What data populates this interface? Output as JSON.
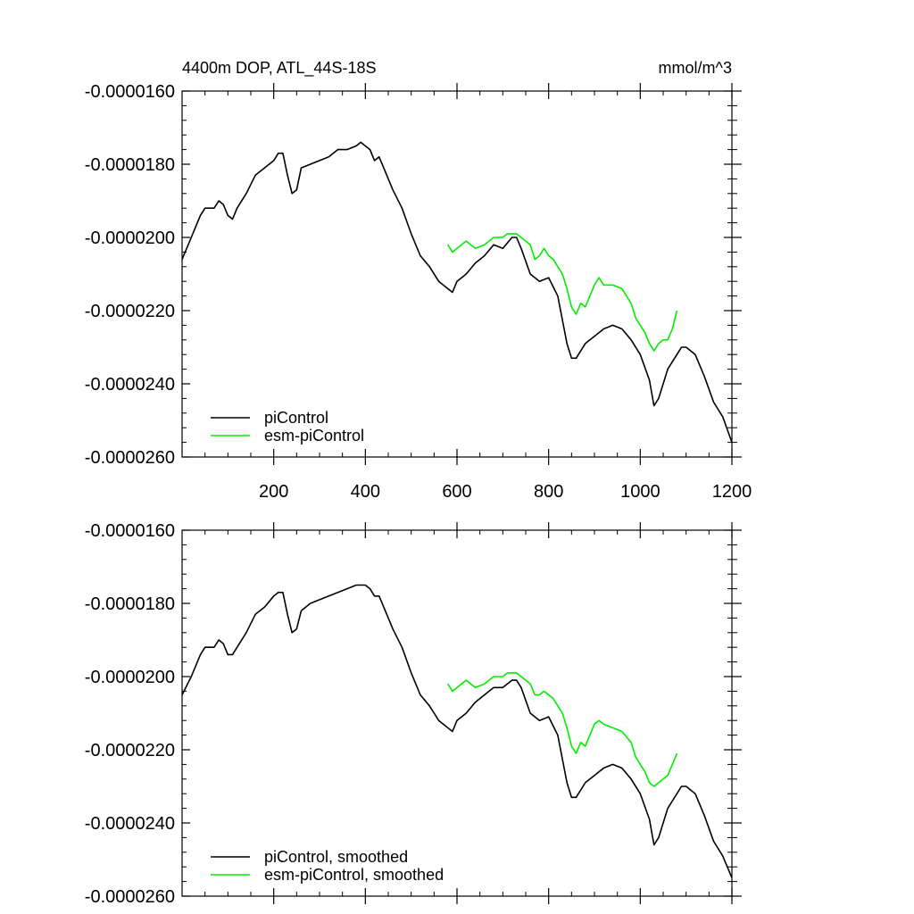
{
  "colors": {
    "background": "#ffffff",
    "axis": "#000000",
    "piControl": "#000000",
    "esm_piControl": "#00ee00"
  },
  "chart_data": [
    {
      "type": "line",
      "title": "4400m DOP, ATL_44S-18S",
      "units": "mmol/m^3",
      "xlabel": "",
      "ylabel": "",
      "xlim": [
        0,
        1200
      ],
      "ylim": [
        -2.6e-05,
        -1.6e-05
      ],
      "xticks": [
        200,
        400,
        600,
        800,
        1000,
        1200
      ],
      "xtick_labels": [
        "200",
        "400",
        "600",
        "800",
        "1000",
        "1200"
      ],
      "yticks": [
        -1.6e-05,
        -1.8e-05,
        -2e-05,
        -2.2e-05,
        -2.4e-05,
        -2.6e-05
      ],
      "ytick_labels": [
        "-0.0000160",
        "-0.0000180",
        "-0.0000200",
        "-0.0000220",
        "-0.0000240",
        "-0.0000260"
      ],
      "legend_position": "bottom-left",
      "series": [
        {
          "name": "piControl",
          "color": "#000000",
          "x": [
            0,
            20,
            40,
            50,
            60,
            70,
            80,
            90,
            100,
            110,
            120,
            140,
            160,
            180,
            200,
            210,
            220,
            230,
            240,
            250,
            260,
            280,
            300,
            320,
            340,
            360,
            380,
            390,
            400,
            410,
            420,
            430,
            440,
            460,
            480,
            500,
            520,
            540,
            560,
            580,
            590,
            600,
            620,
            640,
            660,
            680,
            700,
            720,
            730,
            740,
            760,
            780,
            800,
            820,
            840,
            850,
            860,
            880,
            900,
            920,
            940,
            960,
            980,
            1000,
            1020,
            1030,
            1040,
            1060,
            1080,
            1090,
            1100,
            1120,
            1140,
            1160,
            1180,
            1200
          ],
          "y": [
            -2.06e-05,
            -2e-05,
            -1.94e-05,
            -1.92e-05,
            -1.92e-05,
            -1.92e-05,
            -1.9e-05,
            -1.91e-05,
            -1.94e-05,
            -1.95e-05,
            -1.92e-05,
            -1.88e-05,
            -1.83e-05,
            -1.81e-05,
            -1.79e-05,
            -1.77e-05,
            -1.77e-05,
            -1.83e-05,
            -1.88e-05,
            -1.87e-05,
            -1.81e-05,
            -1.8e-05,
            -1.79e-05,
            -1.78e-05,
            -1.76e-05,
            -1.76e-05,
            -1.75e-05,
            -1.74e-05,
            -1.75e-05,
            -1.76e-05,
            -1.79e-05,
            -1.78e-05,
            -1.81e-05,
            -1.87e-05,
            -1.92e-05,
            -1.99e-05,
            -2.05e-05,
            -2.08e-05,
            -2.12e-05,
            -2.14e-05,
            -2.15e-05,
            -2.12e-05,
            -2.1e-05,
            -2.07e-05,
            -2.05e-05,
            -2.02e-05,
            -2.03e-05,
            -2e-05,
            -2e-05,
            -2.03e-05,
            -2.1e-05,
            -2.12e-05,
            -2.11e-05,
            -2.16e-05,
            -2.29e-05,
            -2.33e-05,
            -2.33e-05,
            -2.29e-05,
            -2.27e-05,
            -2.25e-05,
            -2.24e-05,
            -2.25e-05,
            -2.28e-05,
            -2.32e-05,
            -2.39e-05,
            -2.46e-05,
            -2.44e-05,
            -2.36e-05,
            -2.32e-05,
            -2.3e-05,
            -2.3e-05,
            -2.32e-05,
            -2.38e-05,
            -2.45e-05,
            -2.49e-05,
            -2.56e-05
          ]
        },
        {
          "name": "esm-piControl",
          "color": "#00ee00",
          "x": [
            580,
            590,
            600,
            620,
            640,
            660,
            680,
            700,
            710,
            720,
            730,
            740,
            760,
            770,
            780,
            790,
            800,
            810,
            820,
            830,
            840,
            850,
            860,
            870,
            880,
            890,
            900,
            910,
            920,
            940,
            960,
            980,
            990,
            1000,
            1010,
            1020,
            1030,
            1040,
            1050,
            1060,
            1070,
            1080
          ],
          "y": [
            -2.02e-05,
            -2.04e-05,
            -2.03e-05,
            -2.01e-05,
            -2.03e-05,
            -2.02e-05,
            -2e-05,
            -2e-05,
            -1.99e-05,
            -1.99e-05,
            -1.99e-05,
            -2e-05,
            -2.02e-05,
            -2.06e-05,
            -2.05e-05,
            -2.03e-05,
            -2.05e-05,
            -2.06e-05,
            -2.08e-05,
            -2.1e-05,
            -2.14e-05,
            -2.19e-05,
            -2.21e-05,
            -2.18e-05,
            -2.19e-05,
            -2.16e-05,
            -2.13e-05,
            -2.11e-05,
            -2.13e-05,
            -2.13e-05,
            -2.14e-05,
            -2.18e-05,
            -2.22e-05,
            -2.24e-05,
            -2.26e-05,
            -2.29e-05,
            -2.31e-05,
            -2.29e-05,
            -2.28e-05,
            -2.28e-05,
            -2.25e-05,
            -2.2e-05
          ]
        }
      ]
    },
    {
      "type": "line",
      "title": "",
      "xlabel": "",
      "ylabel": "",
      "xlim": [
        0,
        1200
      ],
      "ylim": [
        -2.6e-05,
        -1.6e-05
      ],
      "xticks": [
        200,
        400,
        600,
        800,
        1000,
        1200
      ],
      "xtick_labels": [],
      "yticks": [
        -1.6e-05,
        -1.8e-05,
        -2e-05,
        -2.2e-05,
        -2.4e-05,
        -2.6e-05
      ],
      "ytick_labels": [
        "-0.0000160",
        "-0.0000180",
        "-0.0000200",
        "-0.0000220",
        "-0.0000240",
        "-0.0000260"
      ],
      "legend_position": "bottom-left",
      "series": [
        {
          "name": "piControl, smoothed",
          "color": "#000000",
          "x": [
            0,
            20,
            40,
            50,
            60,
            70,
            80,
            90,
            100,
            110,
            120,
            140,
            160,
            180,
            200,
            210,
            220,
            230,
            240,
            250,
            260,
            280,
            300,
            320,
            340,
            360,
            380,
            390,
            400,
            410,
            420,
            430,
            440,
            460,
            480,
            500,
            520,
            540,
            560,
            580,
            590,
            600,
            620,
            640,
            660,
            680,
            700,
            720,
            730,
            740,
            760,
            780,
            800,
            820,
            840,
            850,
            860,
            880,
            900,
            920,
            940,
            960,
            980,
            1000,
            1020,
            1030,
            1040,
            1060,
            1080,
            1090,
            1100,
            1120,
            1140,
            1160,
            1180,
            1200
          ],
          "y": [
            -2.05e-05,
            -2e-05,
            -1.94e-05,
            -1.92e-05,
            -1.92e-05,
            -1.92e-05,
            -1.9e-05,
            -1.91e-05,
            -1.94e-05,
            -1.94e-05,
            -1.92e-05,
            -1.88e-05,
            -1.83e-05,
            -1.81e-05,
            -1.78e-05,
            -1.77e-05,
            -1.77e-05,
            -1.83e-05,
            -1.88e-05,
            -1.87e-05,
            -1.82e-05,
            -1.8e-05,
            -1.79e-05,
            -1.78e-05,
            -1.77e-05,
            -1.76e-05,
            -1.75e-05,
            -1.75e-05,
            -1.75e-05,
            -1.76e-05,
            -1.78e-05,
            -1.78e-05,
            -1.81e-05,
            -1.87e-05,
            -1.92e-05,
            -1.99e-05,
            -2.05e-05,
            -2.08e-05,
            -2.12e-05,
            -2.14e-05,
            -2.15e-05,
            -2.12e-05,
            -2.1e-05,
            -2.07e-05,
            -2.05e-05,
            -2.03e-05,
            -2.03e-05,
            -2.01e-05,
            -2.01e-05,
            -2.03e-05,
            -2.1e-05,
            -2.12e-05,
            -2.11e-05,
            -2.16e-05,
            -2.29e-05,
            -2.33e-05,
            -2.33e-05,
            -2.29e-05,
            -2.27e-05,
            -2.25e-05,
            -2.24e-05,
            -2.25e-05,
            -2.28e-05,
            -2.32e-05,
            -2.39e-05,
            -2.46e-05,
            -2.44e-05,
            -2.36e-05,
            -2.32e-05,
            -2.3e-05,
            -2.3e-05,
            -2.32e-05,
            -2.38e-05,
            -2.45e-05,
            -2.49e-05,
            -2.55e-05
          ]
        },
        {
          "name": "esm-piControl, smoothed",
          "color": "#00ee00",
          "x": [
            580,
            590,
            600,
            620,
            640,
            660,
            680,
            700,
            710,
            720,
            730,
            740,
            760,
            770,
            780,
            790,
            800,
            810,
            820,
            830,
            840,
            850,
            860,
            870,
            880,
            890,
            900,
            910,
            920,
            940,
            960,
            980,
            990,
            1000,
            1010,
            1020,
            1030,
            1040,
            1050,
            1060,
            1070,
            1080
          ],
          "y": [
            -2.02e-05,
            -2.04e-05,
            -2.03e-05,
            -2.01e-05,
            -2.03e-05,
            -2.02e-05,
            -2e-05,
            -2e-05,
            -1.99e-05,
            -1.99e-05,
            -1.99e-05,
            -2e-05,
            -2.02e-05,
            -2.05e-05,
            -2.05e-05,
            -2.04e-05,
            -2.05e-05,
            -2.06e-05,
            -2.08e-05,
            -2.1e-05,
            -2.14e-05,
            -2.19e-05,
            -2.21e-05,
            -2.18e-05,
            -2.19e-05,
            -2.16e-05,
            -2.13e-05,
            -2.12e-05,
            -2.13e-05,
            -2.14e-05,
            -2.15e-05,
            -2.18e-05,
            -2.22e-05,
            -2.24e-05,
            -2.26e-05,
            -2.29e-05,
            -2.3e-05,
            -2.29e-05,
            -2.28e-05,
            -2.27e-05,
            -2.24e-05,
            -2.21e-05
          ]
        }
      ]
    }
  ]
}
